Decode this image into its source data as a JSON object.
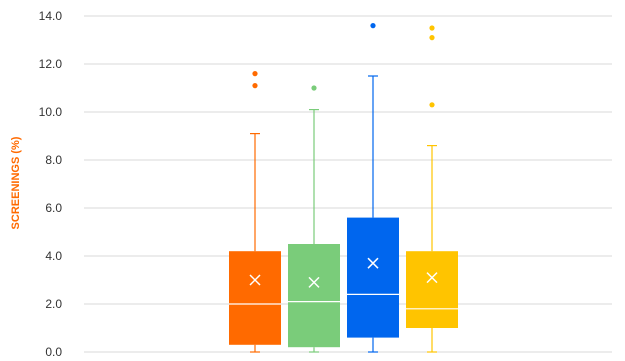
{
  "chart_data": {
    "type": "box",
    "ylabel": "SCREENINGS (%)",
    "ylim": [
      0,
      14
    ],
    "y_ticks": [
      "0.0",
      "2.0",
      "4.0",
      "6.0",
      "8.0",
      "10.0",
      "12.0",
      "14.0"
    ],
    "y_tick_values": [
      0,
      2,
      4,
      6,
      8,
      10,
      12,
      14
    ],
    "grid": true,
    "legend": "none",
    "ylabel_color": "#FF6A00",
    "series": [
      {
        "color": "#FF6A00",
        "median_color": "#ffffff",
        "whisker_low": 0.0,
        "q1": 0.3,
        "median": 2.0,
        "q3": 4.2,
        "whisker_high": 9.1,
        "mean": 3.0,
        "outliers": [
          11.1,
          11.6
        ]
      },
      {
        "color": "#7ACC7A",
        "median_color": "#ffffff",
        "whisker_low": 0.0,
        "q1": 0.2,
        "median": 2.1,
        "q3": 4.5,
        "whisker_high": 10.1,
        "mean": 2.9,
        "outliers": [
          11.0
        ]
      },
      {
        "color": "#0066EE",
        "median_color": "#ffffff",
        "whisker_low": 0.0,
        "q1": 0.6,
        "median": 2.4,
        "q3": 5.6,
        "whisker_high": 11.5,
        "mean": 3.7,
        "outliers": [
          13.6
        ]
      },
      {
        "color": "#FFC400",
        "median_color": "#ffffff",
        "whisker_low": 0.0,
        "q1": 1.0,
        "median": 1.8,
        "q3": 4.2,
        "whisker_high": 8.6,
        "mean": 3.1,
        "outliers": [
          10.3,
          13.1,
          13.5
        ]
      }
    ]
  }
}
